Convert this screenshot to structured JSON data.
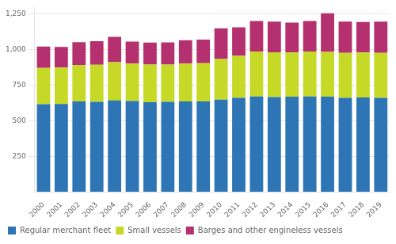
{
  "chart_data": {
    "type": "bar",
    "stacked": true,
    "categories": [
      "2000",
      "2001",
      "2002",
      "2003",
      "2004",
      "2005",
      "2006",
      "2007",
      "2008",
      "2009",
      "2010",
      "2011",
      "2012",
      "2013",
      "2014",
      "2015",
      "2016",
      "2017",
      "2018",
      "2019"
    ],
    "series": [
      {
        "name": "Regular merchant fleet",
        "color": "#2e75b6",
        "values": [
          615,
          617,
          635,
          632,
          642,
          638,
          630,
          632,
          635,
          635,
          648,
          660,
          670,
          665,
          668,
          670,
          668,
          660,
          663,
          660
        ]
      },
      {
        "name": "Small vessels",
        "color": "#c5d926",
        "values": [
          255,
          255,
          255,
          260,
          268,
          262,
          263,
          262,
          265,
          268,
          285,
          295,
          315,
          315,
          310,
          315,
          315,
          315,
          315,
          315
        ]
      },
      {
        "name": "Barges and other engineless vessels",
        "color": "#b4306e",
        "values": [
          150,
          145,
          160,
          165,
          178,
          155,
          155,
          155,
          165,
          165,
          215,
          200,
          215,
          215,
          210,
          215,
          270,
          220,
          215,
          220
        ]
      }
    ],
    "ylim": [
      0,
      1300
    ],
    "yticks": [
      250,
      500,
      750,
      {
        "value": 1000,
        "label": "1,000"
      },
      {
        "value": 1250,
        "label": "1,250"
      }
    ],
    "grid": true,
    "legend": "bottom"
  }
}
